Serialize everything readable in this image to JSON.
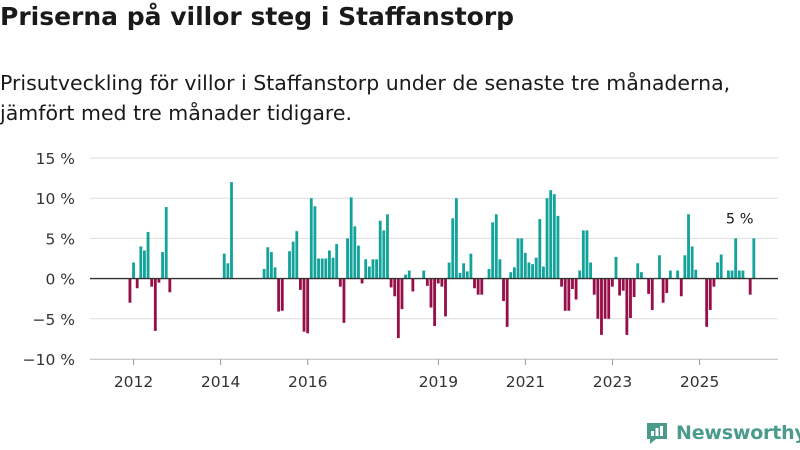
{
  "header": {
    "title": "Priserna på villor steg i Staffanstorp",
    "subtitle_line1": "Prisutveckling för villor i Staffanstorp under de senaste tre månaderna,",
    "subtitle_line2": "jämfört med tre månader tidigare."
  },
  "branding": {
    "name": "Newsworthy",
    "icon": "newsworthy-chart-icon"
  },
  "colors": {
    "positive": "#14a39a",
    "negative": "#970f48",
    "grid": "#dddddd",
    "axis": "#333333"
  },
  "chart_data": {
    "type": "bar",
    "title": "Priserna på villor steg i Staffanstorp",
    "subtitle": "Prisutveckling för villor i Staffanstorp under de senaste tre månaderna, jämfört med tre månader tidigare.",
    "xlabel": "",
    "ylabel": "",
    "unit": "%",
    "ylim": [
      -10,
      15
    ],
    "yticks": [
      -10,
      -5,
      0,
      5,
      10,
      15
    ],
    "ytick_labels": [
      "−10 %",
      "−5 %",
      "0 %",
      "5 %",
      "10 %",
      "15 %"
    ],
    "xlim": [
      2011.0,
      2026.8
    ],
    "xticks": [
      2012,
      2014,
      2016,
      2019,
      2021,
      2023,
      2025
    ],
    "xtick_labels": [
      "2012",
      "2014",
      "2016",
      "2019",
      "2021",
      "2023",
      "2025"
    ],
    "grid": true,
    "annotation": {
      "label": "5 %",
      "x": 2025.92,
      "value": 5
    },
    "series": [
      {
        "name": "Prisutveckling villor",
        "start": 2011.917,
        "step": 0.0833,
        "values": [
          -3,
          2,
          -1.2,
          4,
          3.5,
          5.8,
          -1,
          -6.5,
          -0.5,
          3.3,
          8.9,
          -1.7,
          null,
          null,
          null,
          null,
          null,
          null,
          null,
          null,
          null,
          null,
          null,
          null,
          null,
          null,
          3.1,
          1.9,
          12,
          null,
          null,
          null,
          null,
          null,
          null,
          null,
          null,
          1.2,
          3.9,
          3.3,
          1.4,
          -4.1,
          -4,
          null,
          3.4,
          4.6,
          5.9,
          -1.4,
          -6.6,
          -6.8,
          10,
          9,
          2.5,
          2.5,
          2.5,
          3.5,
          2.6,
          4.3,
          -1,
          -5.5,
          5,
          10.1,
          6.5,
          4.1,
          -0.6,
          2.4,
          1.5,
          2.4,
          2.4,
          7.2,
          6,
          8,
          -1.1,
          -2.2,
          -7.4,
          -3.8,
          0.5,
          1,
          -1.6,
          null,
          null,
          1,
          -0.9,
          -3.6,
          -5.9,
          -0.6,
          -1,
          -4.7,
          2,
          7.5,
          10,
          0.7,
          1.9,
          0.9,
          3.1,
          -1.2,
          -2,
          -2,
          null,
          1.2,
          7,
          8,
          2.4,
          -2.8,
          -6,
          0.8,
          1.4,
          5,
          5,
          3.2,
          2,
          1.8,
          2.6,
          7.4,
          1.5,
          10,
          11,
          10.5,
          7.8,
          -1,
          -4,
          -4,
          -1.3,
          -2.6,
          1,
          6,
          6,
          2,
          -2,
          -5,
          -7,
          -5,
          -5,
          -1,
          2.7,
          -2.1,
          -1.5,
          -7,
          -4.9,
          -2.3,
          1.9,
          0.8,
          null,
          -1.9,
          -3.9,
          null,
          2.9,
          -3,
          -1.8,
          1,
          null,
          1,
          -2.2,
          2.9,
          8,
          4,
          1.1,
          null,
          null,
          -6,
          -3.9,
          -1,
          2,
          3,
          null,
          1,
          1,
          5,
          1,
          1,
          null,
          -2,
          5
        ]
      }
    ]
  }
}
